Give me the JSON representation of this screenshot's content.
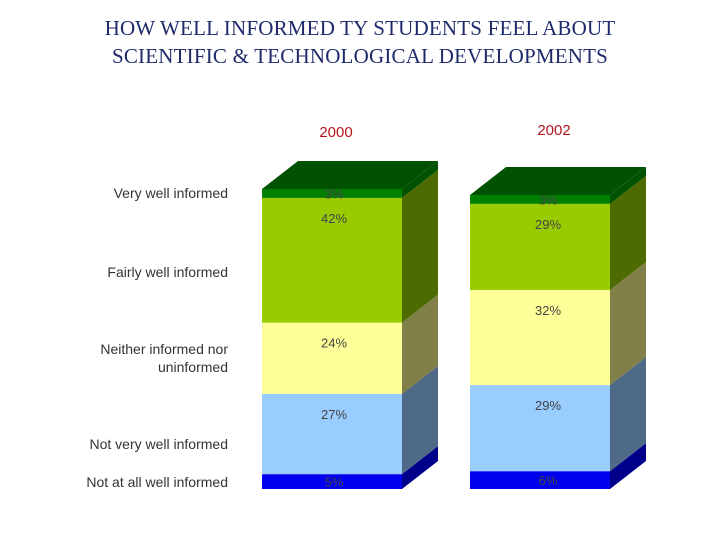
{
  "title_lines": [
    "HOW WELL INFORMED TY STUDENTS FEEL ABOUT",
    "SCIENTIFIC & TECHNOLOGICAL DEVELOPMENTS"
  ],
  "chart_data": {
    "type": "bar",
    "stacked": true,
    "title": "HOW WELL INFORMED TY STUDENTS FEEL ABOUT SCIENTIFIC & TECHNOLOGICAL DEVELOPMENTS",
    "categories": [
      "2000",
      "2002"
    ],
    "series": [
      {
        "name": "Not at all well informed",
        "values": [
          5,
          6
        ],
        "labels": [
          "5%",
          "6%"
        ],
        "color": "#0000ee"
      },
      {
        "name": "Not very well informed",
        "values": [
          27,
          29
        ],
        "labels": [
          "27%",
          "29%"
        ],
        "color": "#99ccff"
      },
      {
        "name": "Neither informed nor uninformed",
        "values": [
          24,
          32
        ],
        "labels": [
          "24%",
          "32%"
        ],
        "color": "#ffff99"
      },
      {
        "name": "Fairly well informed",
        "values": [
          42,
          29
        ],
        "labels": [
          "42%",
          "29%"
        ],
        "color": "#99cc00"
      },
      {
        "name": "Very well informed",
        "values": [
          3,
          3
        ],
        "labels": [
          "3%",
          "3%"
        ],
        "color": "#008000"
      }
    ],
    "side_colors": [
      "#00008b",
      "#4f6a86",
      "#808048",
      "#4d6b00",
      "#005200"
    ],
    "ylim": [
      0,
      101
    ],
    "legend": "left"
  }
}
